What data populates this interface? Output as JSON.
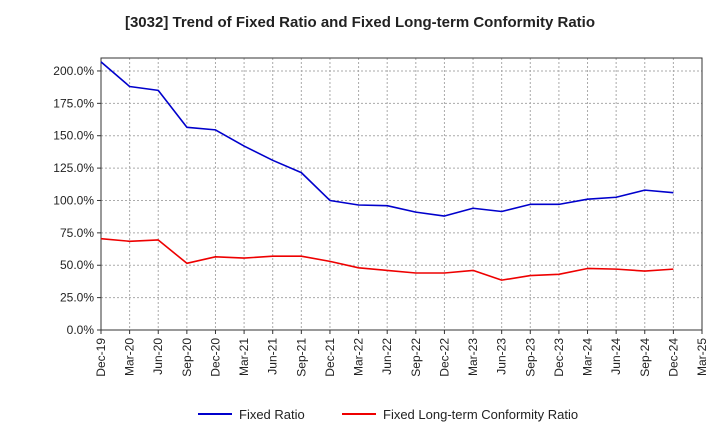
{
  "chart_data": {
    "type": "line",
    "title": "[3032]  Trend of Fixed Ratio and Fixed Long-term Conformity Ratio",
    "xlabel": "",
    "ylabel": "",
    "categories": [
      "Dec-19",
      "Mar-20",
      "Jun-20",
      "Sep-20",
      "Dec-20",
      "Mar-21",
      "Jun-21",
      "Sep-21",
      "Dec-21",
      "Mar-22",
      "Jun-22",
      "Sep-22",
      "Dec-22",
      "Mar-23",
      "Jun-23",
      "Sep-23",
      "Dec-23",
      "Mar-24",
      "Jun-24",
      "Sep-24",
      "Dec-24",
      "Mar-25"
    ],
    "x_tick_labels": [
      "Dec-19",
      "Mar-20",
      "Jun-20",
      "Sep-20",
      "Dec-20",
      "Mar-21",
      "Jun-21",
      "Sep-21",
      "Dec-21",
      "Mar-22",
      "Jun-22",
      "Sep-22",
      "Dec-22",
      "Mar-23",
      "Jun-23",
      "Sep-23",
      "Dec-23",
      "Mar-24",
      "Jun-24",
      "Sep-24",
      "Dec-24",
      "Mar-25"
    ],
    "y_tick_labels": [
      "0.0%",
      "25.0%",
      "50.0%",
      "75.0%",
      "100.0%",
      "125.0%",
      "150.0%",
      "175.0%",
      "200.0%"
    ],
    "y_ticks": [
      0,
      25,
      50,
      75,
      100,
      125,
      150,
      175,
      200
    ],
    "ylim": [
      0,
      210
    ],
    "grid": true,
    "grid_style": "dashed",
    "legend_position": "bottom",
    "series": [
      {
        "name": "Fixed Ratio",
        "color": "#0000cc",
        "values": [
          207.0,
          188.0,
          185.0,
          156.5,
          154.5,
          142.0,
          131.0,
          121.5,
          100.0,
          96.5,
          96.0,
          91.0,
          88.0,
          94.0,
          91.5,
          97.0,
          97.0,
          101.0,
          102.5,
          108.0,
          106.0,
          null
        ]
      },
      {
        "name": "Fixed Long-term Conformity Ratio",
        "color": "#ee0000",
        "values": [
          70.5,
          68.5,
          69.5,
          51.5,
          56.5,
          55.5,
          57.0,
          57.0,
          53.0,
          48.0,
          46.0,
          44.0,
          44.0,
          46.0,
          38.5,
          42.0,
          43.0,
          47.5,
          47.0,
          45.5,
          47.0,
          null
        ]
      }
    ]
  }
}
